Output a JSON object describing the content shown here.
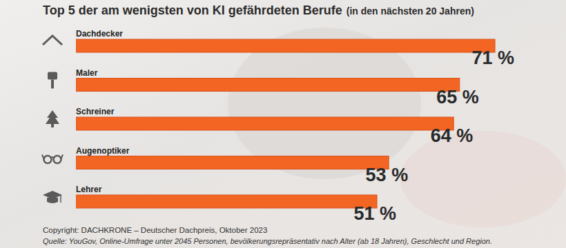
{
  "chart_data": {
    "type": "bar",
    "orientation": "horizontal",
    "title": "Top 5 der am wenigsten von KI gefährdeten Berufe",
    "subtitle": "(in den nächsten 20 Jahren)",
    "categories": [
      "Dachdecker",
      "Maler",
      "Schreiner",
      "Augenoptiker",
      "Lehrer"
    ],
    "values": [
      71,
      65,
      64,
      53,
      51
    ],
    "value_labels": [
      "71 %",
      "65 %",
      "64 %",
      "53 %",
      "51 %"
    ],
    "color": "#f26522",
    "xlim": [
      0,
      80
    ],
    "data_labels": true,
    "tick_labels": false,
    "grid": false,
    "copyright": "Copyright: DACHKRONE – Deutscher Dachpreis, Oktober 2023",
    "source": "Quelle: YouGov, Online-Umfrage unter 2045 Personen, bevölkerungsrepräsentativ nach Alter (ab 18 Jahren), Geschlecht und Region."
  }
}
